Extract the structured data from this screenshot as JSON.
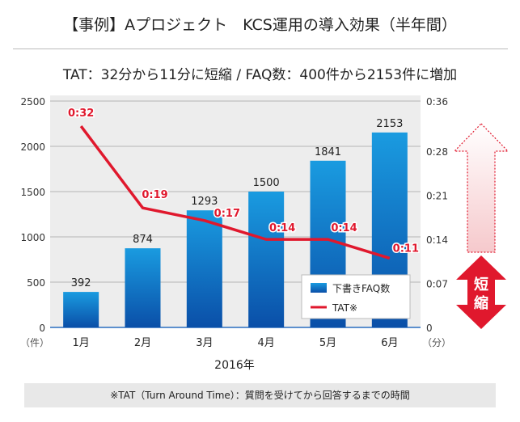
{
  "title": "【事例】Aプロジェクト　KCS運用の導入効果（半年間）",
  "subtitle": "TAT：32分から11分に短縮 / FAQ数：400件から2153件に増加",
  "footnote": "※TAT（Turn Around Time）：質問を受けてから回答するまでの時間",
  "badge": "短縮",
  "chart_data": {
    "type": "bar+line",
    "categories": [
      "1月",
      "2月",
      "3月",
      "4月",
      "5月",
      "6月"
    ],
    "xlabel": "2016年",
    "y_left": {
      "unit": "（件）",
      "range": [
        0,
        2500
      ],
      "ticks": [
        "0",
        "500",
        "1000",
        "1500",
        "2000",
        "2500"
      ]
    },
    "y_right": {
      "unit": "（分）",
      "range_minutes": [
        0,
        36
      ],
      "ticks": [
        "0",
        "0:07",
        "0:14",
        "0:21",
        "0:28",
        "0:36"
      ]
    },
    "series": [
      {
        "name": "下書きFAQ数",
        "type": "bar",
        "values": [
          392,
          874,
          1293,
          1500,
          1841,
          2153
        ],
        "labels": [
          "392",
          "874",
          "1293",
          "1500",
          "1841",
          "2153"
        ],
        "color": "#0a5fb4"
      },
      {
        "name": "TAT※",
        "type": "line",
        "values_minutes": [
          32,
          19,
          17,
          14,
          14,
          11
        ],
        "labels": [
          "0:32",
          "0:19",
          "0:17",
          "0:14",
          "0:14",
          "0:11"
        ],
        "color": "#e0182d"
      }
    ],
    "grid": true,
    "legend": "bottom-right"
  }
}
